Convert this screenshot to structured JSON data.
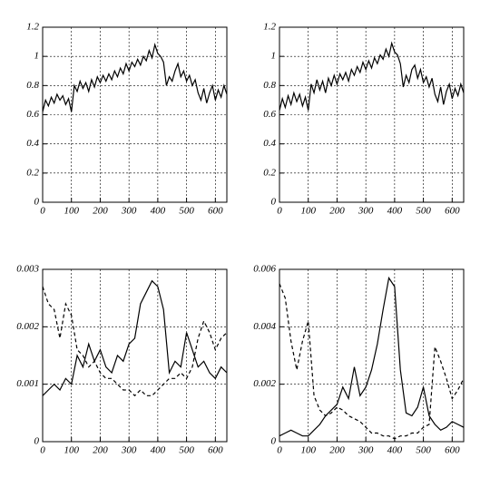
{
  "chart_data": [
    {
      "type": "line",
      "xlim": [
        0,
        640
      ],
      "xticks": [
        0,
        100,
        200,
        300,
        400,
        500,
        600
      ],
      "ylim": [
        0,
        1.2
      ],
      "yticks": [
        0,
        0.2,
        0.4,
        0.6,
        0.8,
        1,
        1.2
      ],
      "grid": true,
      "x": [
        0,
        10,
        20,
        30,
        40,
        50,
        60,
        70,
        80,
        90,
        100,
        110,
        120,
        130,
        140,
        150,
        160,
        170,
        180,
        190,
        200,
        210,
        220,
        230,
        240,
        250,
        260,
        270,
        280,
        290,
        300,
        310,
        320,
        330,
        340,
        350,
        360,
        370,
        380,
        390,
        400,
        410,
        420,
        430,
        440,
        450,
        460,
        470,
        480,
        490,
        500,
        510,
        520,
        530,
        540,
        550,
        560,
        570,
        580,
        590,
        600,
        610,
        620,
        630,
        640
      ],
      "series": [
        {
          "color": "#000",
          "dashed": false,
          "values": [
            0.62,
            0.7,
            0.66,
            0.72,
            0.68,
            0.74,
            0.7,
            0.73,
            0.67,
            0.71,
            0.62,
            0.8,
            0.76,
            0.83,
            0.78,
            0.82,
            0.76,
            0.84,
            0.79,
            0.86,
            0.82,
            0.87,
            0.83,
            0.88,
            0.84,
            0.9,
            0.86,
            0.92,
            0.88,
            0.95,
            0.9,
            0.96,
            0.93,
            0.98,
            0.94,
            1.0,
            0.97,
            1.04,
            0.99,
            1.08,
            1.02,
            1.0,
            0.96,
            0.8,
            0.86,
            0.83,
            0.9,
            0.95,
            0.86,
            0.9,
            0.83,
            0.87,
            0.8,
            0.84,
            0.75,
            0.7,
            0.78,
            0.68,
            0.75,
            0.8,
            0.7,
            0.77,
            0.72,
            0.8,
            0.74
          ]
        }
      ]
    },
    {
      "type": "line",
      "xlim": [
        0,
        640
      ],
      "xticks": [
        0,
        100,
        200,
        300,
        400,
        500,
        600
      ],
      "ylim": [
        0,
        1.2
      ],
      "yticks": [
        0,
        0.2,
        0.4,
        0.6,
        0.8,
        1,
        1.2
      ],
      "grid": true,
      "x": [
        0,
        10,
        20,
        30,
        40,
        50,
        60,
        70,
        80,
        90,
        100,
        110,
        120,
        130,
        140,
        150,
        160,
        170,
        180,
        190,
        200,
        210,
        220,
        230,
        240,
        250,
        260,
        270,
        280,
        290,
        300,
        310,
        320,
        330,
        340,
        350,
        360,
        370,
        380,
        390,
        400,
        410,
        420,
        430,
        440,
        450,
        460,
        470,
        480,
        490,
        500,
        510,
        520,
        530,
        540,
        550,
        560,
        570,
        580,
        590,
        600,
        610,
        620,
        630,
        640
      ],
      "series": [
        {
          "color": "#000",
          "dashed": false,
          "values": [
            0.63,
            0.71,
            0.65,
            0.73,
            0.67,
            0.75,
            0.69,
            0.74,
            0.66,
            0.72,
            0.63,
            0.81,
            0.75,
            0.84,
            0.77,
            0.83,
            0.75,
            0.85,
            0.8,
            0.87,
            0.81,
            0.88,
            0.84,
            0.89,
            0.83,
            0.91,
            0.87,
            0.93,
            0.89,
            0.96,
            0.91,
            0.97,
            0.92,
            0.99,
            0.95,
            1.01,
            0.98,
            1.05,
            1.0,
            1.09,
            1.03,
            1.01,
            0.95,
            0.79,
            0.87,
            0.82,
            0.91,
            0.94,
            0.85,
            0.91,
            0.82,
            0.86,
            0.79,
            0.85,
            0.74,
            0.69,
            0.79,
            0.67,
            0.76,
            0.81,
            0.71,
            0.78,
            0.73,
            0.81,
            0.75
          ]
        }
      ]
    },
    {
      "type": "line",
      "xlim": [
        0,
        640
      ],
      "xticks": [
        0,
        100,
        200,
        300,
        400,
        500,
        600
      ],
      "ylim": [
        0,
        0.003
      ],
      "yticks": [
        0,
        0.001,
        0.002,
        0.003
      ],
      "grid": true,
      "x": [
        0,
        20,
        40,
        60,
        80,
        100,
        120,
        140,
        160,
        180,
        200,
        220,
        240,
        260,
        280,
        300,
        320,
        340,
        360,
        380,
        400,
        420,
        440,
        460,
        480,
        500,
        520,
        540,
        560,
        580,
        600,
        620,
        640
      ],
      "series": [
        {
          "color": "#000",
          "dashed": false,
          "values": [
            0.0008,
            0.0009,
            0.001,
            0.0009,
            0.0011,
            0.001,
            0.0015,
            0.0013,
            0.0017,
            0.0014,
            0.0016,
            0.0013,
            0.0012,
            0.0015,
            0.0014,
            0.0017,
            0.0018,
            0.0024,
            0.0026,
            0.0028,
            0.0027,
            0.0023,
            0.0012,
            0.0014,
            0.0013,
            0.0019,
            0.0016,
            0.0013,
            0.0014,
            0.0012,
            0.0011,
            0.0013,
            0.0012
          ]
        },
        {
          "color": "#000",
          "dashed": true,
          "values": [
            0.0027,
            0.0024,
            0.0023,
            0.0018,
            0.0024,
            0.0022,
            0.0016,
            0.0015,
            0.0013,
            0.0014,
            0.0012,
            0.0011,
            0.0011,
            0.001,
            0.0009,
            0.0009,
            0.0008,
            0.0009,
            0.0008,
            0.0008,
            0.0009,
            0.001,
            0.0011,
            0.0011,
            0.0012,
            0.0011,
            0.0013,
            0.0018,
            0.0021,
            0.0019,
            0.0016,
            0.0018,
            0.0019
          ]
        }
      ]
    },
    {
      "type": "line",
      "xlim": [
        0,
        640
      ],
      "xticks": [
        0,
        100,
        200,
        300,
        400,
        500,
        600
      ],
      "ylim": [
        0,
        0.006
      ],
      "yticks": [
        0,
        0.002,
        0.004,
        0.006
      ],
      "grid": true,
      "x": [
        0,
        20,
        40,
        60,
        80,
        100,
        120,
        140,
        160,
        180,
        200,
        220,
        240,
        260,
        280,
        300,
        320,
        340,
        360,
        380,
        400,
        420,
        440,
        460,
        480,
        500,
        520,
        540,
        560,
        580,
        600,
        620,
        640
      ],
      "series": [
        {
          "color": "#000",
          "dashed": false,
          "values": [
            0.0002,
            0.0003,
            0.0004,
            0.0003,
            0.0002,
            0.0002,
            0.0004,
            0.0006,
            0.0009,
            0.0011,
            0.0013,
            0.0019,
            0.0015,
            0.0026,
            0.0016,
            0.0019,
            0.0025,
            0.0034,
            0.0046,
            0.0057,
            0.0054,
            0.0025,
            0.001,
            0.0009,
            0.0012,
            0.0019,
            0.0009,
            0.0006,
            0.0004,
            0.0005,
            0.0007,
            0.0006,
            0.0005
          ]
        },
        {
          "color": "#000",
          "dashed": true,
          "values": [
            0.0055,
            0.005,
            0.0035,
            0.0025,
            0.0035,
            0.0042,
            0.0016,
            0.0011,
            0.0009,
            0.001,
            0.0012,
            0.0011,
            0.0009,
            0.0008,
            0.0007,
            0.0005,
            0.0003,
            0.0003,
            0.0002,
            0.0002,
            0.0001,
            0.0002,
            0.0002,
            0.0003,
            0.0003,
            0.0005,
            0.0006,
            0.0033,
            0.0028,
            0.0022,
            0.0015,
            0.0018,
            0.0022
          ]
        }
      ]
    }
  ]
}
